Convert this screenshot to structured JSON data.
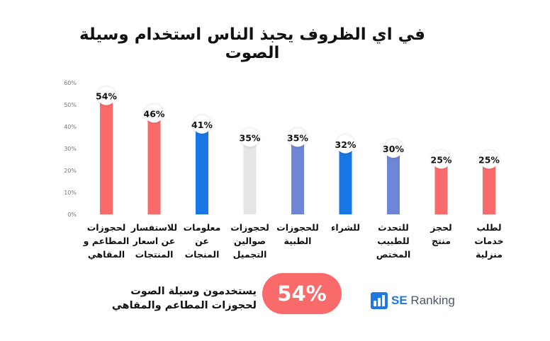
{
  "chart_data": {
    "type": "bar",
    "title": "في اي الظروف يحبذ الناس استخدام وسيلة الصوت",
    "categories": [
      [
        "لحجوزات",
        "المطاعم و",
        "المقاهي"
      ],
      [
        "للاستفسار",
        "عن اسعار",
        "المنتجات"
      ],
      [
        "معلومات",
        "عن",
        "المنجات"
      ],
      [
        "لحجوزات",
        "صوالين",
        "التجميل"
      ],
      [
        "للحجوزات",
        "الطبية"
      ],
      [
        "للشراء"
      ],
      [
        "للتحدث",
        "للطبيب",
        "المختص"
      ],
      [
        "لحجز",
        "منتج"
      ],
      [
        "لطلب",
        "خدمات",
        "منزلية"
      ]
    ],
    "values": [
      54,
      46,
      41,
      35,
      35,
      32,
      30,
      25,
      25
    ],
    "value_labels": [
      "54%",
      "46%",
      "41%",
      "35%",
      "35%",
      "32%",
      "30%",
      "25%",
      "25%"
    ],
    "colors": [
      "#f96b6b",
      "#f96b6b",
      "#1877e6",
      "#e6e6e6",
      "#6f86d6",
      "#1877e6",
      "#6f86d6",
      "#f96b6b",
      "#f96b6b"
    ],
    "y_ticks": [
      "0%",
      "10%",
      "20%",
      "30%",
      "40%",
      "50%",
      "60%"
    ],
    "ylim": [
      0,
      60
    ],
    "xlabel": "",
    "ylabel": "",
    "grid": false
  },
  "highlight": {
    "line1": "يستخدمون وسيلة الصوت",
    "line2": "لحجوزات المطاعم والمقاهي",
    "value": "54%",
    "color": "#f96b6b"
  },
  "brand": {
    "prefix": "SE",
    "name": "Ranking",
    "icon": "se-ranking-logo-icon"
  }
}
